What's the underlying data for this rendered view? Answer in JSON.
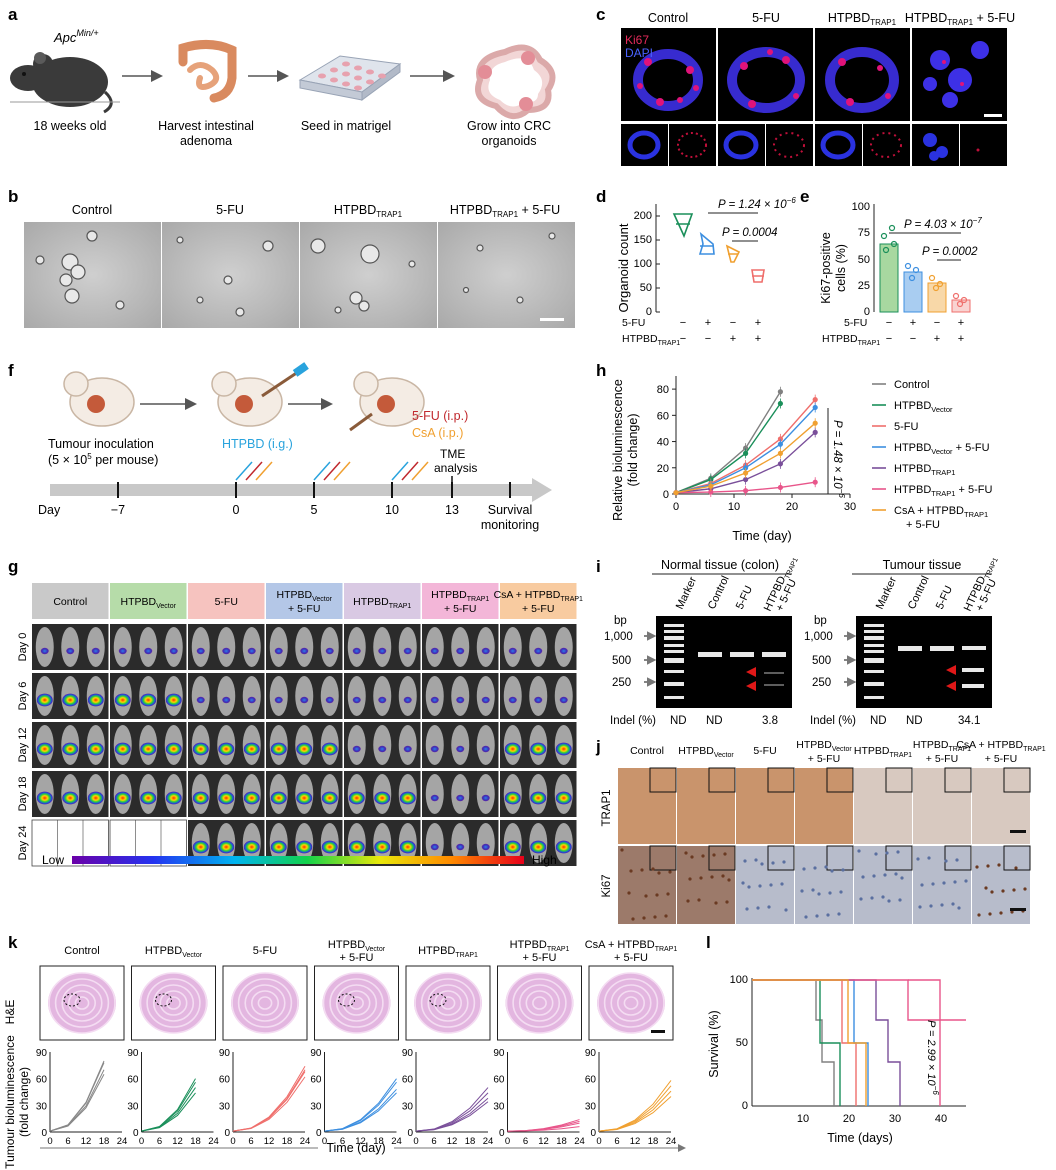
{
  "panel_letters": {
    "a": "a",
    "b": "b",
    "c": "c",
    "d": "d",
    "e": "e",
    "f": "f",
    "g": "g",
    "h": "h",
    "i": "i",
    "j": "j",
    "k": "k",
    "l": "l"
  },
  "panel_a": {
    "mouse_label_main": "Apc",
    "mouse_label_sup": "Min/+",
    "steps": [
      "18 weeks old",
      "Harvest intestinal",
      "adenoma",
      "Seed in matrigel",
      "Grow into CRC",
      "organoids"
    ]
  },
  "panel_b": {
    "labels": [
      "Control",
      "5-FU",
      "HTPBD",
      "HTPBD",
      "+ 5-FU"
    ],
    "sub": "TRAP1"
  },
  "panel_c": {
    "labels": [
      "Control",
      "5-FU",
      "HTPBD",
      "HTPBD",
      "+ 5-FU"
    ],
    "sub": "TRAP1",
    "legend_ki67": "Ki67",
    "legend_dapi": "DAPI"
  },
  "panel_d": {
    "ylabel": "Organoid count",
    "yticks": [
      "0",
      "50",
      "100",
      "150",
      "200"
    ],
    "p1": "P = 1.24 × 10",
    "p1_exp": "−6",
    "p2": "P = 0.0004",
    "row1_label": "5-FU",
    "row2_label": "HTPBD",
    "row2_sub": "TRAP1",
    "row1_signs": [
      "−",
      "+",
      "−",
      "+"
    ],
    "row2_signs": [
      "−",
      "−",
      "+",
      "+"
    ]
  },
  "panel_e": {
    "ylabel1": "Ki67-positive",
    "ylabel2": "cells (%)",
    "yticks": [
      "0",
      "25",
      "50",
      "75",
      "100"
    ],
    "p1": "P = 4.03 × 10",
    "p1_exp": "−7",
    "p2": "P = 0.0002",
    "row1_label": "5-FU",
    "row2_label": "HTPBD",
    "row2_sub": "TRAP1",
    "row1_signs": [
      "−",
      "+",
      "−",
      "+"
    ],
    "row2_signs": [
      "−",
      "−",
      "+",
      "+"
    ]
  },
  "panel_f": {
    "inoc1": "Tumour inoculation",
    "inoc2": "(5 × 10",
    "inoc2_sup": "5",
    "inoc2_tail": " per mouse)",
    "htpbd": "HTPBD (i.g.)",
    "fu": "5-FU (i.p.)",
    "csa": "CsA (i.p.)",
    "tme1": "TME",
    "tme2": "analysis",
    "day_label": "Day",
    "ticks": [
      "−7",
      "0",
      "5",
      "10",
      "13"
    ],
    "survival1": "Survival",
    "survival2": "monitoring",
    "colors": {
      "htpbd": "#29a3dd",
      "fu": "#c0282d",
      "csa": "#f0a030"
    }
  },
  "panel_h": {
    "ylabel1": "Relative bioluminescence",
    "ylabel2": "(fold change)",
    "xlabel": "Time (day)",
    "p": "P = 1.48 × 10",
    "p_exp": "−6",
    "legend": [
      {
        "main": "Control",
        "sub": "",
        "tail": "",
        "color": "#808080"
      },
      {
        "main": "HTPBD",
        "sub": "Vector",
        "tail": "",
        "color": "#1a8f5a"
      },
      {
        "main": "5-FU",
        "sub": "",
        "tail": "",
        "color": "#ef6f6c"
      },
      {
        "main": "HTPBD",
        "sub": "Vector",
        "tail": " + 5-FU",
        "color": "#3d8fe0"
      },
      {
        "main": "HTPBD",
        "sub": "TRAP1",
        "tail": "",
        "color": "#7a4f9a"
      },
      {
        "main": "HTPBD",
        "sub": "TRAP1",
        "tail": " + 5-FU",
        "color": "#e8558a"
      },
      {
        "main": "CsA + HTPBD",
        "sub": "TRAP1",
        "tail": "",
        "color": "#f0a030"
      }
    ],
    "legend_last_line2": "+ 5-FU"
  },
  "chart_data": {
    "type": "line",
    "xlabel": "Time (day)",
    "ylabel": "Relative bioluminescence (fold change)",
    "x": [
      0,
      6,
      12,
      18,
      24
    ],
    "xlim": [
      0,
      30
    ],
    "ylim": [
      0,
      90
    ],
    "xticks": [
      0,
      10,
      20,
      30
    ],
    "yticks": [
      0,
      20,
      40,
      60,
      80
    ],
    "series": [
      {
        "name": "Control",
        "x": [
          0,
          6,
          12,
          18
        ],
        "values": [
          1,
          12,
          35,
          78
        ],
        "color": "#808080"
      },
      {
        "name": "HTPBD Vector",
        "x": [
          0,
          6,
          12,
          18
        ],
        "values": [
          1,
          11,
          31,
          69
        ],
        "color": "#1a8f5a"
      },
      {
        "name": "5-FU",
        "x": [
          0,
          6,
          12,
          18,
          24
        ],
        "values": [
          1,
          8,
          22,
          42,
          72
        ],
        "color": "#ef6f6c"
      },
      {
        "name": "HTPBD Vector + 5-FU",
        "x": [
          0,
          6,
          12,
          18,
          24
        ],
        "values": [
          1,
          7,
          20,
          38,
          66
        ],
        "color": "#3d8fe0"
      },
      {
        "name": "HTPBD TRAP1",
        "x": [
          0,
          6,
          12,
          18,
          24
        ],
        "values": [
          1,
          4,
          11,
          23,
          47
        ],
        "color": "#7a4f9a"
      },
      {
        "name": "HTPBD TRAP1 + 5-FU",
        "x": [
          0,
          6,
          12,
          18,
          24
        ],
        "values": [
          1,
          1.5,
          2.5,
          5,
          9
        ],
        "color": "#e8558a"
      },
      {
        "name": "CsA + HTPBD TRAP1 + 5-FU",
        "x": [
          0,
          6,
          12,
          18,
          24
        ],
        "values": [
          1,
          6,
          16,
          31,
          54
        ],
        "color": "#f0a030"
      }
    ]
  },
  "panel_g": {
    "groups": [
      {
        "main": "Control",
        "sub": "",
        "tail": "",
        "color": "#c9c9c9"
      },
      {
        "main": "HTPBD",
        "sub": "Vector",
        "tail": "",
        "color": "#b6dca9"
      },
      {
        "main": "5-FU",
        "sub": "",
        "tail": "",
        "color": "#f6c3bf"
      },
      {
        "main": "HTPBD",
        "sub": "Vector",
        "tail": "+ 5-FU",
        "color": "#b4c7e7"
      },
      {
        "main": "HTPBD",
        "sub": "TRAP1",
        "tail": "",
        "color": "#d9c9e3"
      },
      {
        "main": "HTPBD",
        "sub": "TRAP1",
        "tail": "+ 5-FU",
        "color": "#f3b6d8"
      },
      {
        "main": "CsA + HTPBD",
        "sub": "TRAP1",
        "tail": "+ 5-FU",
        "color": "#f8cba0"
      }
    ],
    "days": [
      "Day 0",
      "Day 6",
      "Day 12",
      "Day 18",
      "Day 24"
    ],
    "low": "Low",
    "high": "High"
  },
  "panel_i": {
    "normal_title": "Normal tissue (colon)",
    "tumour_title": "Tumour tissue",
    "lanes": [
      "Marker",
      "Control",
      "5-FU",
      "HTPBD",
      "+ 5-FU"
    ],
    "lane_sub": "TRAP1",
    "bp": "bp",
    "bp_ticks": [
      "1,000",
      "500",
      "250"
    ],
    "indel_label": "Indel (%)",
    "normal_indel": [
      "ND",
      "ND",
      "3.8"
    ],
    "tumour_indel": [
      "ND",
      "ND",
      "34.1"
    ]
  },
  "panel_j": {
    "cols": [
      {
        "main": "Control",
        "sub": "",
        "tail": ""
      },
      {
        "main": "HTPBD",
        "sub": "Vector",
        "tail": ""
      },
      {
        "main": "5-FU",
        "sub": "",
        "tail": ""
      },
      {
        "main": "HTPBD",
        "sub": "Vector",
        "tail": "+ 5-FU"
      },
      {
        "main": "HTPBD",
        "sub": "TRAP1",
        "tail": ""
      },
      {
        "main": "HTPBD",
        "sub": "TRAP1",
        "tail": "+ 5-FU"
      },
      {
        "main": "CsA + HTPBD",
        "sub": "TRAP1",
        "tail": "+ 5-FU"
      }
    ],
    "rows": [
      "TRAP1",
      "Ki67"
    ]
  },
  "panel_k": {
    "cols": [
      {
        "main": "Control",
        "sub": "",
        "tail": "",
        "color": "#888888"
      },
      {
        "main": "HTPBD",
        "sub": "Vector",
        "tail": "",
        "color": "#1a8f5a"
      },
      {
        "main": "5-FU",
        "sub": "",
        "tail": "",
        "color": "#ef6f6c"
      },
      {
        "main": "HTPBD",
        "sub": "Vector",
        "tail": "+ 5-FU",
        "color": "#3d8fe0"
      },
      {
        "main": "HTPBD",
        "sub": "TRAP1",
        "tail": "",
        "color": "#7a4f9a"
      },
      {
        "main": "HTPBD",
        "sub": "TRAP1",
        "tail": "+ 5-FU",
        "color": "#e8558a"
      },
      {
        "main": "CsA + HTPBD",
        "sub": "TRAP1",
        "tail": "+ 5-FU",
        "color": "#f0a030"
      }
    ],
    "he": "H&E",
    "ylabel1": "Tumour bioluminescence",
    "ylabel2": "(fold change)",
    "yticks": [
      "0",
      "30",
      "60",
      "90"
    ],
    "xticks": [
      "0",
      "6",
      "12",
      "18",
      "24"
    ],
    "xlabel": "Time (day)"
  },
  "panel_l": {
    "ylabel": "Survival (%)",
    "xlabel": "Time (days)",
    "yticks": [
      "0",
      "50",
      "100"
    ],
    "xticks": [
      "10",
      "20",
      "30",
      "40"
    ],
    "p": "P = 2.99 × 10",
    "p_exp": "−6"
  }
}
